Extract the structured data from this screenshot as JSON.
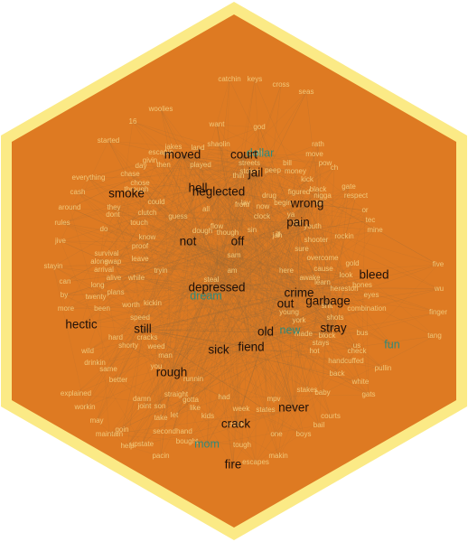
{
  "colors": {
    "hex_outer": "#FBEA86",
    "hex_inner": "#DE7A22",
    "edge": "#9A6A3A",
    "small": "#F2C879",
    "mid": "#3A2414",
    "big": "#1E0F08",
    "accent": "#2F8A7A"
  },
  "words": {
    "small": [
      "catchin",
      "keys",
      "cross",
      "seas",
      "woolies",
      "want",
      "god",
      "16",
      "started",
      "shaolin",
      "escapin",
      "jakes",
      "land",
      "move",
      "pow",
      "givin",
      "day",
      "then",
      "played",
      "bill",
      "chase",
      "everything",
      "chose",
      "through",
      "black",
      "gate",
      "cash",
      "could",
      "kick",
      "they",
      "dont",
      "clutch",
      "respect",
      "around",
      "touch",
      "guess",
      "flow",
      "tec",
      "rules",
      "do",
      "know",
      "dough",
      "though",
      "youth",
      "mine",
      "jive",
      "survival",
      "rockin",
      "swap",
      "proof",
      "tryin",
      "steal",
      "arrival",
      "leave",
      "gold",
      "stayin",
      "along",
      "alive",
      "while",
      "five",
      "can",
      "long",
      "plans",
      "eyes",
      "wu",
      "by",
      "twenty",
      "bones",
      "more",
      "been",
      "worth",
      "kickin",
      "finger",
      "combination",
      "speed",
      "shots",
      "hard",
      "cracks",
      "bus",
      "tang",
      "wild",
      "shorty",
      "weed",
      "us",
      "drinkin",
      "man",
      "check",
      "same",
      "pullin",
      "better",
      "runnin",
      "white",
      "explained",
      "damn",
      "straight",
      "gats",
      "workin",
      "joint",
      "son",
      "had",
      "stakes",
      "baby",
      "may",
      "like",
      "week",
      "courts",
      "goin",
      "take",
      "let",
      "mpv",
      "bail",
      "maintain",
      "secondhand",
      "boys",
      "help",
      "upstate",
      "bought",
      "tough",
      "makin",
      "pacin",
      "escapes",
      "ill",
      "gotta",
      "kids",
      "one",
      "states",
      "young",
      "york",
      "streets",
      "hot",
      "stays",
      "thin",
      "block",
      "hereston",
      "handcuffed",
      "awake",
      "learn",
      "look",
      "cause",
      "overcome",
      "shooter",
      "made",
      "back",
      "shit",
      "sure",
      "stolen",
      "dolla",
      "jah",
      "peep",
      "money",
      "rath",
      "nigga",
      "ch",
      "crack",
      "figured",
      "tel",
      "drug",
      "begin",
      "or",
      "clock",
      "lay",
      "all",
      "from",
      "now",
      "ya",
      "pain",
      "sin",
      "here",
      "am",
      "sam",
      "you"
    ],
    "mid": [
      "moved",
      "court",
      "jail",
      "hell",
      "smoke",
      "neglected",
      "wrong",
      "not",
      "off",
      "pain",
      "depressed",
      "bleed",
      "crime",
      "out",
      "garbage",
      "stray",
      "still",
      "hectic",
      "old",
      "rough",
      "sick",
      "fiend",
      "never",
      "crack",
      "fire"
    ],
    "accent": [
      "dollar",
      "dream",
      "new",
      "fun",
      "mom"
    ]
  }
}
